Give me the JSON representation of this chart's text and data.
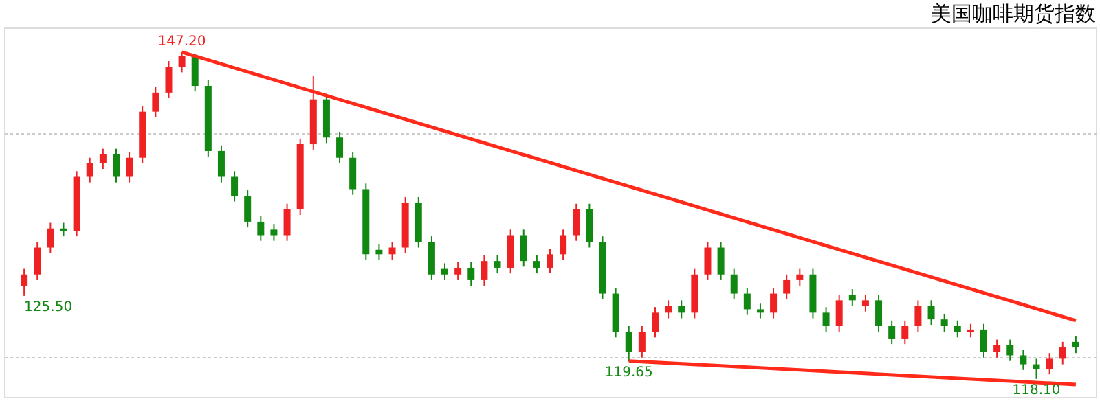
{
  "chart_data": {
    "type": "candlestick",
    "title": "美国咖啡期货指数",
    "categories": [
      null,
      null,
      null,
      null,
      null,
      null,
      null,
      null,
      null,
      null,
      null,
      null,
      null,
      null,
      null,
      null,
      null,
      null,
      null,
      null,
      null,
      null,
      null,
      null,
      null,
      null,
      null,
      null,
      null,
      null,
      null,
      null,
      null,
      null,
      null,
      null,
      null,
      null,
      null,
      null,
      null,
      null,
      null,
      null,
      null,
      null,
      null,
      null,
      null,
      null,
      null,
      null,
      null,
      null,
      null,
      null,
      null,
      null,
      null,
      null,
      null,
      null,
      null,
      null,
      null,
      null,
      null,
      null,
      null,
      null,
      null,
      null,
      null,
      null,
      null,
      null,
      null,
      null,
      null,
      null,
      null
    ],
    "ohlc": [
      [
        126.4,
        127.9,
        125.5,
        127.4
      ],
      [
        127.4,
        130.3,
        126.9,
        129.8
      ],
      [
        129.8,
        132.0,
        129.3,
        131.5
      ],
      [
        131.5,
        132.0,
        130.8,
        131.3
      ],
      [
        131.3,
        136.6,
        130.8,
        136.1
      ],
      [
        136.1,
        137.8,
        135.6,
        137.3
      ],
      [
        137.3,
        138.6,
        136.8,
        138.1
      ],
      [
        138.1,
        138.6,
        135.6,
        136.1
      ],
      [
        136.1,
        138.3,
        135.6,
        137.8
      ],
      [
        137.8,
        142.4,
        137.3,
        141.9
      ],
      [
        141.9,
        144.1,
        141.4,
        143.6
      ],
      [
        143.6,
        146.4,
        143.1,
        145.9
      ],
      [
        145.9,
        147.2,
        145.4,
        146.9
      ],
      [
        146.9,
        147.0,
        143.7,
        144.2
      ],
      [
        144.2,
        144.7,
        137.9,
        138.4
      ],
      [
        138.4,
        138.9,
        135.6,
        136.1
      ],
      [
        136.1,
        136.6,
        133.9,
        134.4
      ],
      [
        134.4,
        134.9,
        131.6,
        132.1
      ],
      [
        132.1,
        132.6,
        130.4,
        130.9
      ],
      [
        131.4,
        131.9,
        130.4,
        130.9
      ],
      [
        130.9,
        133.7,
        130.4,
        133.2
      ],
      [
        133.2,
        139.5,
        132.7,
        139.0
      ],
      [
        139.0,
        145.1,
        138.5,
        143.0
      ],
      [
        143.0,
        143.5,
        139.1,
        139.6
      ],
      [
        139.6,
        140.1,
        137.3,
        137.8
      ],
      [
        137.8,
        138.3,
        134.5,
        135.0
      ],
      [
        135.0,
        135.5,
        128.7,
        129.2
      ],
      [
        129.6,
        130.1,
        128.7,
        129.2
      ],
      [
        129.2,
        130.3,
        128.7,
        129.8
      ],
      [
        129.8,
        134.3,
        129.3,
        133.8
      ],
      [
        133.8,
        134.3,
        129.8,
        130.3
      ],
      [
        130.3,
        130.8,
        126.9,
        127.4
      ],
      [
        127.9,
        128.4,
        126.9,
        127.4
      ],
      [
        127.4,
        128.5,
        126.9,
        128.0
      ],
      [
        128.0,
        128.5,
        126.4,
        126.9
      ],
      [
        126.9,
        129.1,
        126.4,
        128.6
      ],
      [
        128.6,
        129.1,
        127.5,
        128.0
      ],
      [
        128.0,
        131.4,
        127.5,
        130.9
      ],
      [
        130.9,
        131.4,
        128.1,
        128.6
      ],
      [
        128.6,
        129.1,
        127.5,
        128.0
      ],
      [
        128.0,
        129.7,
        127.5,
        129.2
      ],
      [
        129.2,
        131.4,
        128.7,
        130.9
      ],
      [
        130.9,
        133.7,
        130.4,
        133.2
      ],
      [
        133.2,
        133.7,
        129.8,
        130.3
      ],
      [
        130.3,
        130.8,
        125.2,
        125.7
      ],
      [
        125.7,
        126.2,
        121.8,
        122.3
      ],
      [
        122.3,
        122.8,
        119.65,
        120.5
      ],
      [
        120.5,
        122.8,
        120.0,
        122.3
      ],
      [
        122.3,
        124.5,
        121.8,
        124.0
      ],
      [
        124.0,
        125.1,
        123.5,
        124.6
      ],
      [
        124.6,
        125.1,
        123.5,
        124.0
      ],
      [
        124.0,
        127.9,
        123.5,
        127.4
      ],
      [
        127.4,
        130.3,
        126.9,
        129.8
      ],
      [
        129.8,
        130.3,
        126.9,
        127.4
      ],
      [
        127.4,
        127.9,
        125.2,
        125.7
      ],
      [
        125.7,
        126.2,
        123.8,
        124.3
      ],
      [
        124.3,
        124.8,
        123.5,
        124.0
      ],
      [
        124.0,
        126.2,
        123.5,
        125.7
      ],
      [
        125.7,
        127.4,
        125.2,
        126.9
      ],
      [
        126.9,
        127.9,
        126.4,
        127.4
      ],
      [
        127.4,
        127.9,
        123.5,
        124.0
      ],
      [
        124.0,
        124.5,
        122.3,
        122.8
      ],
      [
        122.8,
        125.6,
        122.3,
        125.1
      ],
      [
        125.6,
        126.1,
        124.6,
        125.1
      ],
      [
        124.6,
        125.6,
        124.1,
        125.1
      ],
      [
        125.1,
        125.6,
        122.3,
        122.8
      ],
      [
        122.8,
        123.3,
        121.2,
        121.7
      ],
      [
        121.7,
        123.3,
        121.2,
        122.8
      ],
      [
        122.8,
        125.1,
        122.3,
        124.6
      ],
      [
        124.6,
        125.1,
        122.9,
        123.4
      ],
      [
        123.4,
        123.9,
        122.3,
        122.8
      ],
      [
        122.8,
        123.3,
        121.8,
        122.3
      ],
      [
        122.3,
        123.0,
        121.8,
        122.5
      ],
      [
        122.5,
        123.0,
        120.0,
        120.5
      ],
      [
        120.5,
        121.6,
        120.0,
        121.1
      ],
      [
        121.1,
        121.6,
        119.7,
        120.2
      ],
      [
        120.2,
        120.7,
        118.9,
        119.4
      ],
      [
        119.4,
        119.9,
        118.1,
        119.0
      ],
      [
        119.0,
        120.4,
        118.5,
        119.9
      ],
      [
        119.9,
        121.4,
        119.4,
        120.9
      ],
      [
        121.4,
        121.9,
        120.4,
        120.9
      ]
    ],
    "colors": [
      "#ee2222",
      "#ee2222",
      "#ee2222",
      "#118811",
      "#ee2222",
      "#ee2222",
      "#ee2222",
      "#118811",
      "#ee2222",
      "#ee2222",
      "#ee2222",
      "#ee2222",
      "#ee2222",
      "#118811",
      "#118811",
      "#118811",
      "#118811",
      "#118811",
      "#118811",
      "#118811",
      "#ee2222",
      "#ee2222",
      "#ee2222",
      "#118811",
      "#118811",
      "#118811",
      "#118811",
      "#118811",
      "#ee2222",
      "#ee2222",
      "#118811",
      "#118811",
      "#118811",
      "#ee2222",
      "#118811",
      "#ee2222",
      "#118811",
      "#ee2222",
      "#118811",
      "#118811",
      "#ee2222",
      "#ee2222",
      "#ee2222",
      "#118811",
      "#118811",
      "#118811",
      "#118811",
      "#ee2222",
      "#ee2222",
      "#ee2222",
      "#118811",
      "#ee2222",
      "#ee2222",
      "#118811",
      "#118811",
      "#118811",
      "#118811",
      "#ee2222",
      "#ee2222",
      "#ee2222",
      "#118811",
      "#118811",
      "#ee2222",
      "#118811",
      "#ee2222",
      "#118811",
      "#118811",
      "#ee2222",
      "#ee2222",
      "#118811",
      "#118811",
      "#118811",
      "#ee2222",
      "#118811",
      "#ee2222",
      "#118811",
      "#118811",
      "#118811",
      "#ee2222",
      "#ee2222",
      "#118811"
    ],
    "series": [
      {
        "type": "line",
        "color": "#ff2a1a",
        "values": [
          null,
          null,
          null,
          null,
          null,
          null,
          null,
          null,
          null,
          null,
          null,
          null,
          147.2,
          null,
          null,
          null,
          null,
          null,
          null,
          null,
          null,
          null,
          null,
          null,
          null,
          null,
          null,
          null,
          null,
          null,
          null,
          null,
          null,
          null,
          null,
          null,
          null,
          null,
          null,
          null,
          null,
          null,
          null,
          null,
          null,
          null,
          null,
          null,
          null,
          null,
          null,
          null,
          null,
          null,
          null,
          null,
          null,
          null,
          null,
          null,
          null,
          null,
          null,
          null,
          null,
          null,
          null,
          null,
          null,
          null,
          null,
          null,
          null,
          null,
          null,
          null,
          null,
          null,
          null,
          null,
          123.3
        ]
      },
      {
        "type": "line",
        "color": "#ff2a1a",
        "values": [
          null,
          null,
          null,
          null,
          null,
          null,
          null,
          null,
          null,
          null,
          null,
          null,
          null,
          null,
          null,
          null,
          null,
          null,
          null,
          null,
          null,
          null,
          null,
          null,
          null,
          null,
          null,
          null,
          null,
          null,
          null,
          null,
          null,
          null,
          null,
          null,
          null,
          null,
          null,
          null,
          null,
          null,
          null,
          null,
          null,
          null,
          119.7,
          null,
          null,
          null,
          null,
          null,
          null,
          null,
          null,
          null,
          null,
          null,
          null,
          null,
          null,
          null,
          null,
          null,
          null,
          null,
          null,
          null,
          null,
          null,
          null,
          null,
          null,
          null,
          null,
          null,
          null,
          null,
          null,
          null,
          117.6
        ]
      }
    ],
    "annotations": [
      {
        "text": "147.20",
        "y": 147.2
      },
      "125.50",
      {
        "text": "119.65",
        "y": 119.65
      },
      {
        "text": "118.10",
        "y": 118.1
      }
    ],
    "ylim": [
      116.5,
      149.4
    ],
    "yticks": [
      {
        "value": 120,
        "label": null
      },
      {
        "value": 140,
        "label": null
      }
    ],
    "grid": "y",
    "tick_labels": false,
    "marker": "none",
    "line_style": "solid"
  }
}
